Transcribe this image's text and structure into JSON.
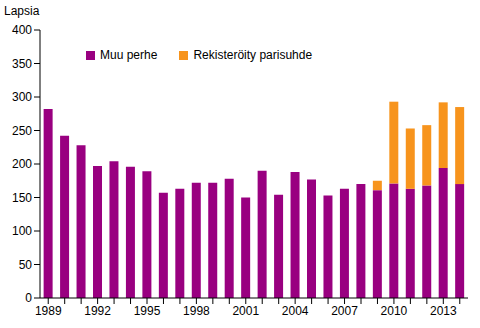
{
  "chart_data": {
    "type": "bar",
    "stacked": true,
    "grid": false,
    "legend": "top left",
    "y_label": "Lapsia",
    "categories": [
      "1989",
      null,
      null,
      "1992",
      null,
      null,
      "1995",
      null,
      null,
      "1998",
      null,
      null,
      "2001",
      null,
      null,
      "2004",
      null,
      null,
      "2007",
      null,
      null,
      "2010",
      null,
      null,
      "2013",
      null
    ],
    "series": [
      {
        "name": "Muu perhe",
        "color": "#990080",
        "values": [
          282,
          242,
          228,
          197,
          204,
          196,
          189,
          157,
          163,
          172,
          172,
          178,
          150,
          190,
          154,
          188,
          177,
          153,
          163,
          170,
          161,
          171,
          163,
          168,
          194,
          170
        ]
      },
      {
        "name": "Rekisteröity parisuhde",
        "color": "#f7941d",
        "values": [
          null,
          null,
          null,
          null,
          null,
          null,
          null,
          null,
          null,
          null,
          null,
          null,
          null,
          null,
          null,
          null,
          null,
          null,
          null,
          null,
          14,
          122,
          90,
          90,
          98,
          115
        ]
      }
    ],
    "ylim": [
      0,
      400
    ],
    "yticks": [
      0,
      50,
      100,
      150,
      200,
      250,
      300,
      350,
      400
    ]
  }
}
